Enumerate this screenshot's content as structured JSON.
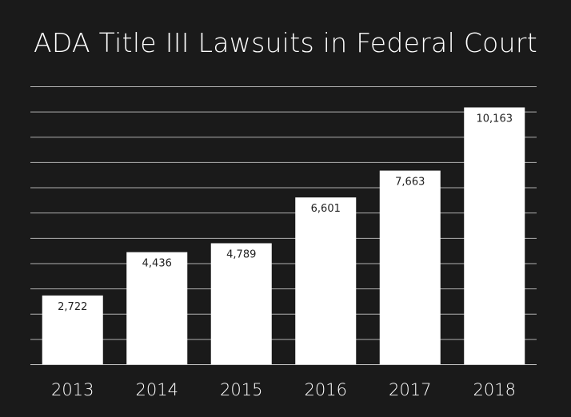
{
  "chart_data": {
    "type": "bar",
    "title": "ADA Title III Lawsuits in Federal Court",
    "categories": [
      "2013",
      "2014",
      "2015",
      "2016",
      "2017",
      "2018"
    ],
    "values": [
      2722,
      4436,
      4789,
      6601,
      7663,
      10163
    ],
    "data_labels": [
      "2,722",
      "4,436",
      "4,789",
      "6,601",
      "7,663",
      "10,163"
    ],
    "xlabel": "",
    "ylabel": "",
    "ylim": [
      0,
      11000
    ],
    "grid": true,
    "grid_step": 1000,
    "y_tick_labels_shown": false,
    "colors": {
      "background": "#1a1a1a",
      "bar": "#ffffff",
      "grid": "#b0b0b0",
      "text": "#ffffff",
      "label": "#222222"
    }
  }
}
